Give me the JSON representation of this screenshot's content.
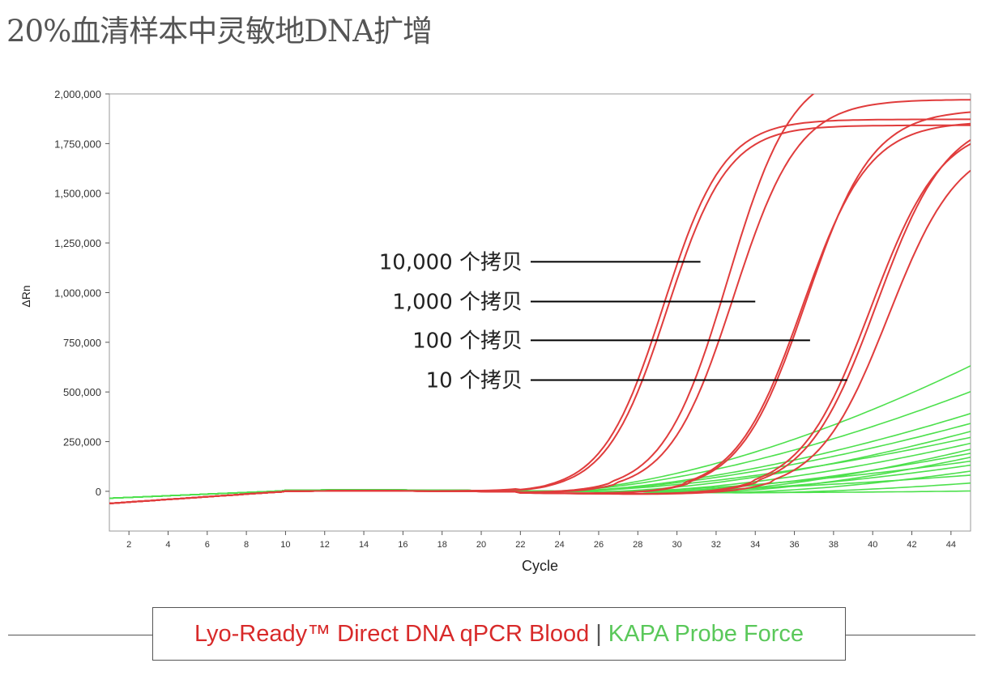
{
  "title": "20%血清样本中灵敏地DNA扩增",
  "colors": {
    "red_series": "#e03c3c",
    "green_series": "#4de04d",
    "axis": "#555555",
    "legend_red": "#d82a2a",
    "legend_green": "#5ac85a"
  },
  "legend": {
    "red_label": "Lyo-Ready™ Direct DNA qPCR Blood",
    "separator": "|",
    "green_label": "KAPA Probe Force"
  },
  "chart_data": {
    "type": "line",
    "xlabel": "Cycle",
    "ylabel": "ΔRn",
    "xlim": [
      1,
      45
    ],
    "ylim": [
      -200000,
      2000000
    ],
    "x_ticks": [
      2,
      4,
      6,
      8,
      10,
      12,
      14,
      16,
      18,
      20,
      22,
      24,
      26,
      28,
      30,
      32,
      34,
      36,
      38,
      40,
      42,
      44
    ],
    "y_ticks": [
      0,
      250000,
      500000,
      750000,
      1000000,
      1250000,
      1500000,
      1750000,
      2000000
    ],
    "y_tick_labels": [
      "0",
      "250,000",
      "500,000",
      "750,000",
      "1,000,000",
      "1,250,000",
      "1,500,000",
      "1,750,000",
      "2,000,000"
    ],
    "annotations": [
      {
        "label": "10,000 个拷贝",
        "y": 1155000,
        "x_end": 31.2
      },
      {
        "label": "1,000 个拷贝",
        "y": 955000,
        "x_end": 34.0
      },
      {
        "label": "100 个拷贝",
        "y": 760000,
        "x_end": 36.8
      },
      {
        "label": "10 个拷贝",
        "y": 560000,
        "x_end": 38.7
      }
    ],
    "series": [
      {
        "name": "Lyo-Ready 10,000 copies rep 1",
        "color": "red",
        "midpoint": 29.3,
        "plateau": 1880000,
        "slope": 1.55
      },
      {
        "name": "Lyo-Ready 10,000 copies rep 2",
        "color": "red",
        "midpoint": 29.5,
        "plateau": 1850000,
        "slope": 1.55
      },
      {
        "name": "Lyo-Ready 1,000 copies rep 1",
        "color": "red",
        "midpoint": 32.6,
        "plateau": 2150000,
        "slope": 1.65
      },
      {
        "name": "Lyo-Ready 1,000 copies rep 2",
        "color": "red",
        "midpoint": 32.9,
        "plateau": 1980000,
        "slope": 1.65
      },
      {
        "name": "Lyo-Ready 100 copies rep 1",
        "color": "red",
        "midpoint": 36.4,
        "plateau": 1870000,
        "slope": 1.7
      },
      {
        "name": "Lyo-Ready 100 copies rep 2",
        "color": "red",
        "midpoint": 36.6,
        "plateau": 1930000,
        "slope": 1.7
      },
      {
        "name": "Lyo-Ready 10 copies rep 1",
        "color": "red",
        "midpoint": 39.9,
        "plateau": 1860000,
        "slope": 1.8
      },
      {
        "name": "Lyo-Ready 10 copies rep 2",
        "color": "red",
        "midpoint": 40.2,
        "plateau": 1900000,
        "slope": 1.8
      },
      {
        "name": "Lyo-Ready 10 copies rep 3",
        "color": "red",
        "midpoint": 40.8,
        "plateau": 1780000,
        "slope": 1.8
      },
      {
        "name": "KAPA Probe Force 1",
        "color": "green",
        "end_value": 650000,
        "rise_start": 23.5
      },
      {
        "name": "KAPA Probe Force 2",
        "color": "green",
        "end_value": 520000,
        "rise_start": 23.5
      },
      {
        "name": "KAPA Probe Force 3",
        "color": "green",
        "end_value": 410000,
        "rise_start": 24
      },
      {
        "name": "KAPA Probe Force 4",
        "color": "green",
        "end_value": 360000,
        "rise_start": 24
      },
      {
        "name": "KAPA Probe Force 5",
        "color": "green",
        "end_value": 320000,
        "rise_start": 26
      },
      {
        "name": "KAPA Probe Force 6",
        "color": "green",
        "end_value": 290000,
        "rise_start": 24
      },
      {
        "name": "KAPA Probe Force 7",
        "color": "green",
        "end_value": 260000,
        "rise_start": 27
      },
      {
        "name": "KAPA Probe Force 8",
        "color": "green",
        "end_value": 230000,
        "rise_start": 30
      },
      {
        "name": "KAPA Probe Force 9",
        "color": "green",
        "end_value": 210000,
        "rise_start": 28
      },
      {
        "name": "KAPA Probe Force 10",
        "color": "green",
        "end_value": 190000,
        "rise_start": 31
      },
      {
        "name": "KAPA Probe Force 11",
        "color": "green",
        "end_value": 170000,
        "rise_start": 26
      },
      {
        "name": "KAPA Probe Force 12",
        "color": "green",
        "end_value": 150000,
        "rise_start": 29
      },
      {
        "name": "KAPA Probe Force 13",
        "color": "green",
        "end_value": 120000,
        "rise_start": 32
      },
      {
        "name": "KAPA Probe Force 14",
        "color": "green",
        "end_value": 100000,
        "rise_start": 26
      },
      {
        "name": "KAPA Probe Force 15",
        "color": "green",
        "end_value": 60000,
        "rise_start": 33
      },
      {
        "name": "KAPA Probe Force 16",
        "color": "green",
        "end_value": 20000,
        "rise_start": 30
      }
    ]
  }
}
